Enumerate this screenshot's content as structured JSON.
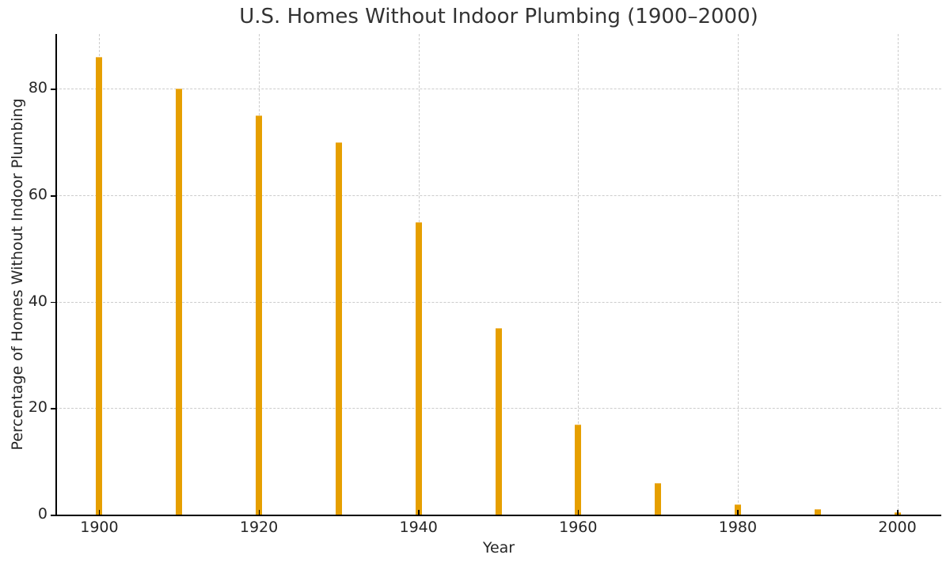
{
  "chart_data": {
    "type": "bar",
    "title": "U.S. Homes Without Indoor Plumbing (1900–2000)",
    "xlabel": "Year",
    "ylabel": "Percentage of Homes Without Indoor Plumbing",
    "categories": [
      1900,
      1910,
      1920,
      1930,
      1940,
      1950,
      1960,
      1970,
      1980,
      1990,
      2000
    ],
    "values": [
      86,
      80,
      75,
      70,
      55,
      35,
      17,
      6,
      2,
      1,
      0.5
    ],
    "ylim": [
      0,
      90.3
    ],
    "xlim": [
      1894.5,
      2005.5
    ],
    "yticks": [
      0,
      20,
      40,
      60,
      80
    ],
    "xticks": [
      1900,
      1920,
      1940,
      1960,
      1980,
      2000
    ],
    "grid": true,
    "legend": null,
    "bar_color": "#E69F00"
  }
}
